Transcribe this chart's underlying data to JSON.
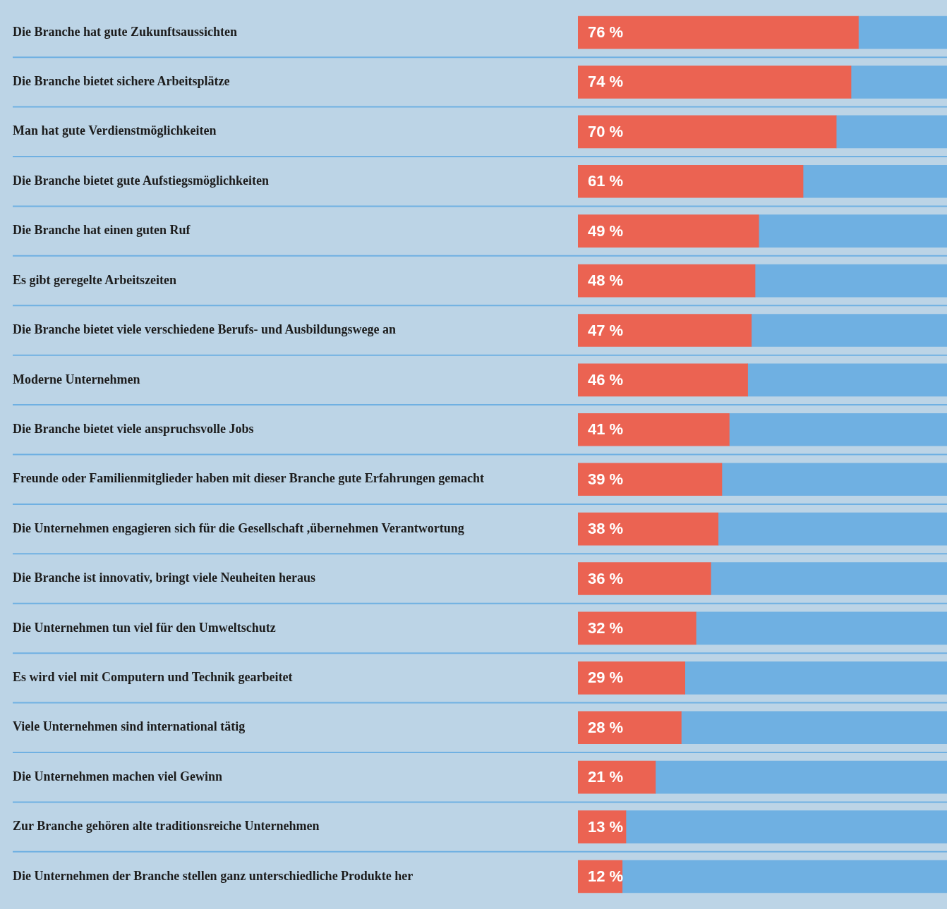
{
  "chart_data": {
    "type": "bar",
    "orientation": "horizontal",
    "stacked": true,
    "categories": [
      "Die Branche hat gute Zukunftsaussichten",
      "Die Branche bietet sichere Arbeitsplätze",
      "Man hat gute Verdienstmöglichkeiten",
      "Die Branche bietet gute Aufstiegsmöglichkeiten",
      "Die Branche hat einen guten Ruf",
      "Es gibt geregelte Arbeitszeiten",
      "Die Branche bietet viele verschiedene Berufs- und Ausbildungswege an",
      "Moderne Unternehmen",
      "Die Branche bietet viele anspruchsvolle Jobs",
      "Freunde oder Familienmitglieder haben mit dieser Branche gute Erfahrungen gemacht",
      "Die Unternehmen engagieren sich für die Gesellschaft ,übernehmen Verantwortung",
      "Die Branche ist innovativ, bringt viele Neuheiten heraus",
      "Die Unternehmen tun viel für den Umweltschutz",
      "Es wird viel mit Computern und Technik gearbeitet",
      "Viele Unternehmen sind international tätig",
      "Die Unternehmen machen viel Gewinn",
      "Zur Branche gehören alte traditionsreiche Unternehmen",
      "Die Unternehmen der Branche stellen ganz unterschiedliche Produkte her"
    ],
    "series": [
      {
        "color": "#eb6352",
        "values": [
          76,
          74,
          70,
          61,
          49,
          48,
          47,
          46,
          41,
          39,
          38,
          36,
          32,
          29,
          28,
          21,
          13,
          12
        ],
        "value_labels": [
          "76 %",
          "74 %",
          "70 %",
          "61 %",
          "49 %",
          "48 %",
          "47 %",
          "46 %",
          "41 %",
          "39 %",
          "38 %",
          "36 %",
          "32 %",
          "29 %",
          "28 %",
          "21 %",
          "13 %",
          "12 %"
        ]
      },
      {
        "color": "#6fb0e2",
        "values": [
          24,
          26,
          30,
          39,
          51,
          52,
          53,
          54,
          59,
          61,
          62,
          64,
          68,
          71,
          72,
          79,
          87,
          88
        ]
      }
    ],
    "xlim": [
      0,
      100
    ],
    "grid": "y",
    "tick_labels": "y",
    "legend": false
  }
}
